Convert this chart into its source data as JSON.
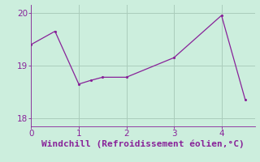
{
  "x": [
    0,
    0.5,
    1,
    1.25,
    1.5,
    2,
    3,
    4,
    4.5
  ],
  "y": [
    19.4,
    19.65,
    18.65,
    18.72,
    18.78,
    18.78,
    19.15,
    19.95,
    18.35
  ],
  "xlabel": "Windchill (Refroidissement éolien,°C)",
  "xlim": [
    0,
    4.7
  ],
  "ylim": [
    17.85,
    20.15
  ],
  "yticks": [
    18,
    19,
    20
  ],
  "xticks": [
    0,
    1,
    2,
    3,
    4
  ],
  "line_color": "#882299",
  "marker_color": "#882299",
  "bg_color": "#cceedd",
  "grid_color": "#aaccbb",
  "tick_color": "#882299",
  "label_color": "#882299",
  "xlabel_fontsize": 8,
  "tick_fontsize": 7.5
}
